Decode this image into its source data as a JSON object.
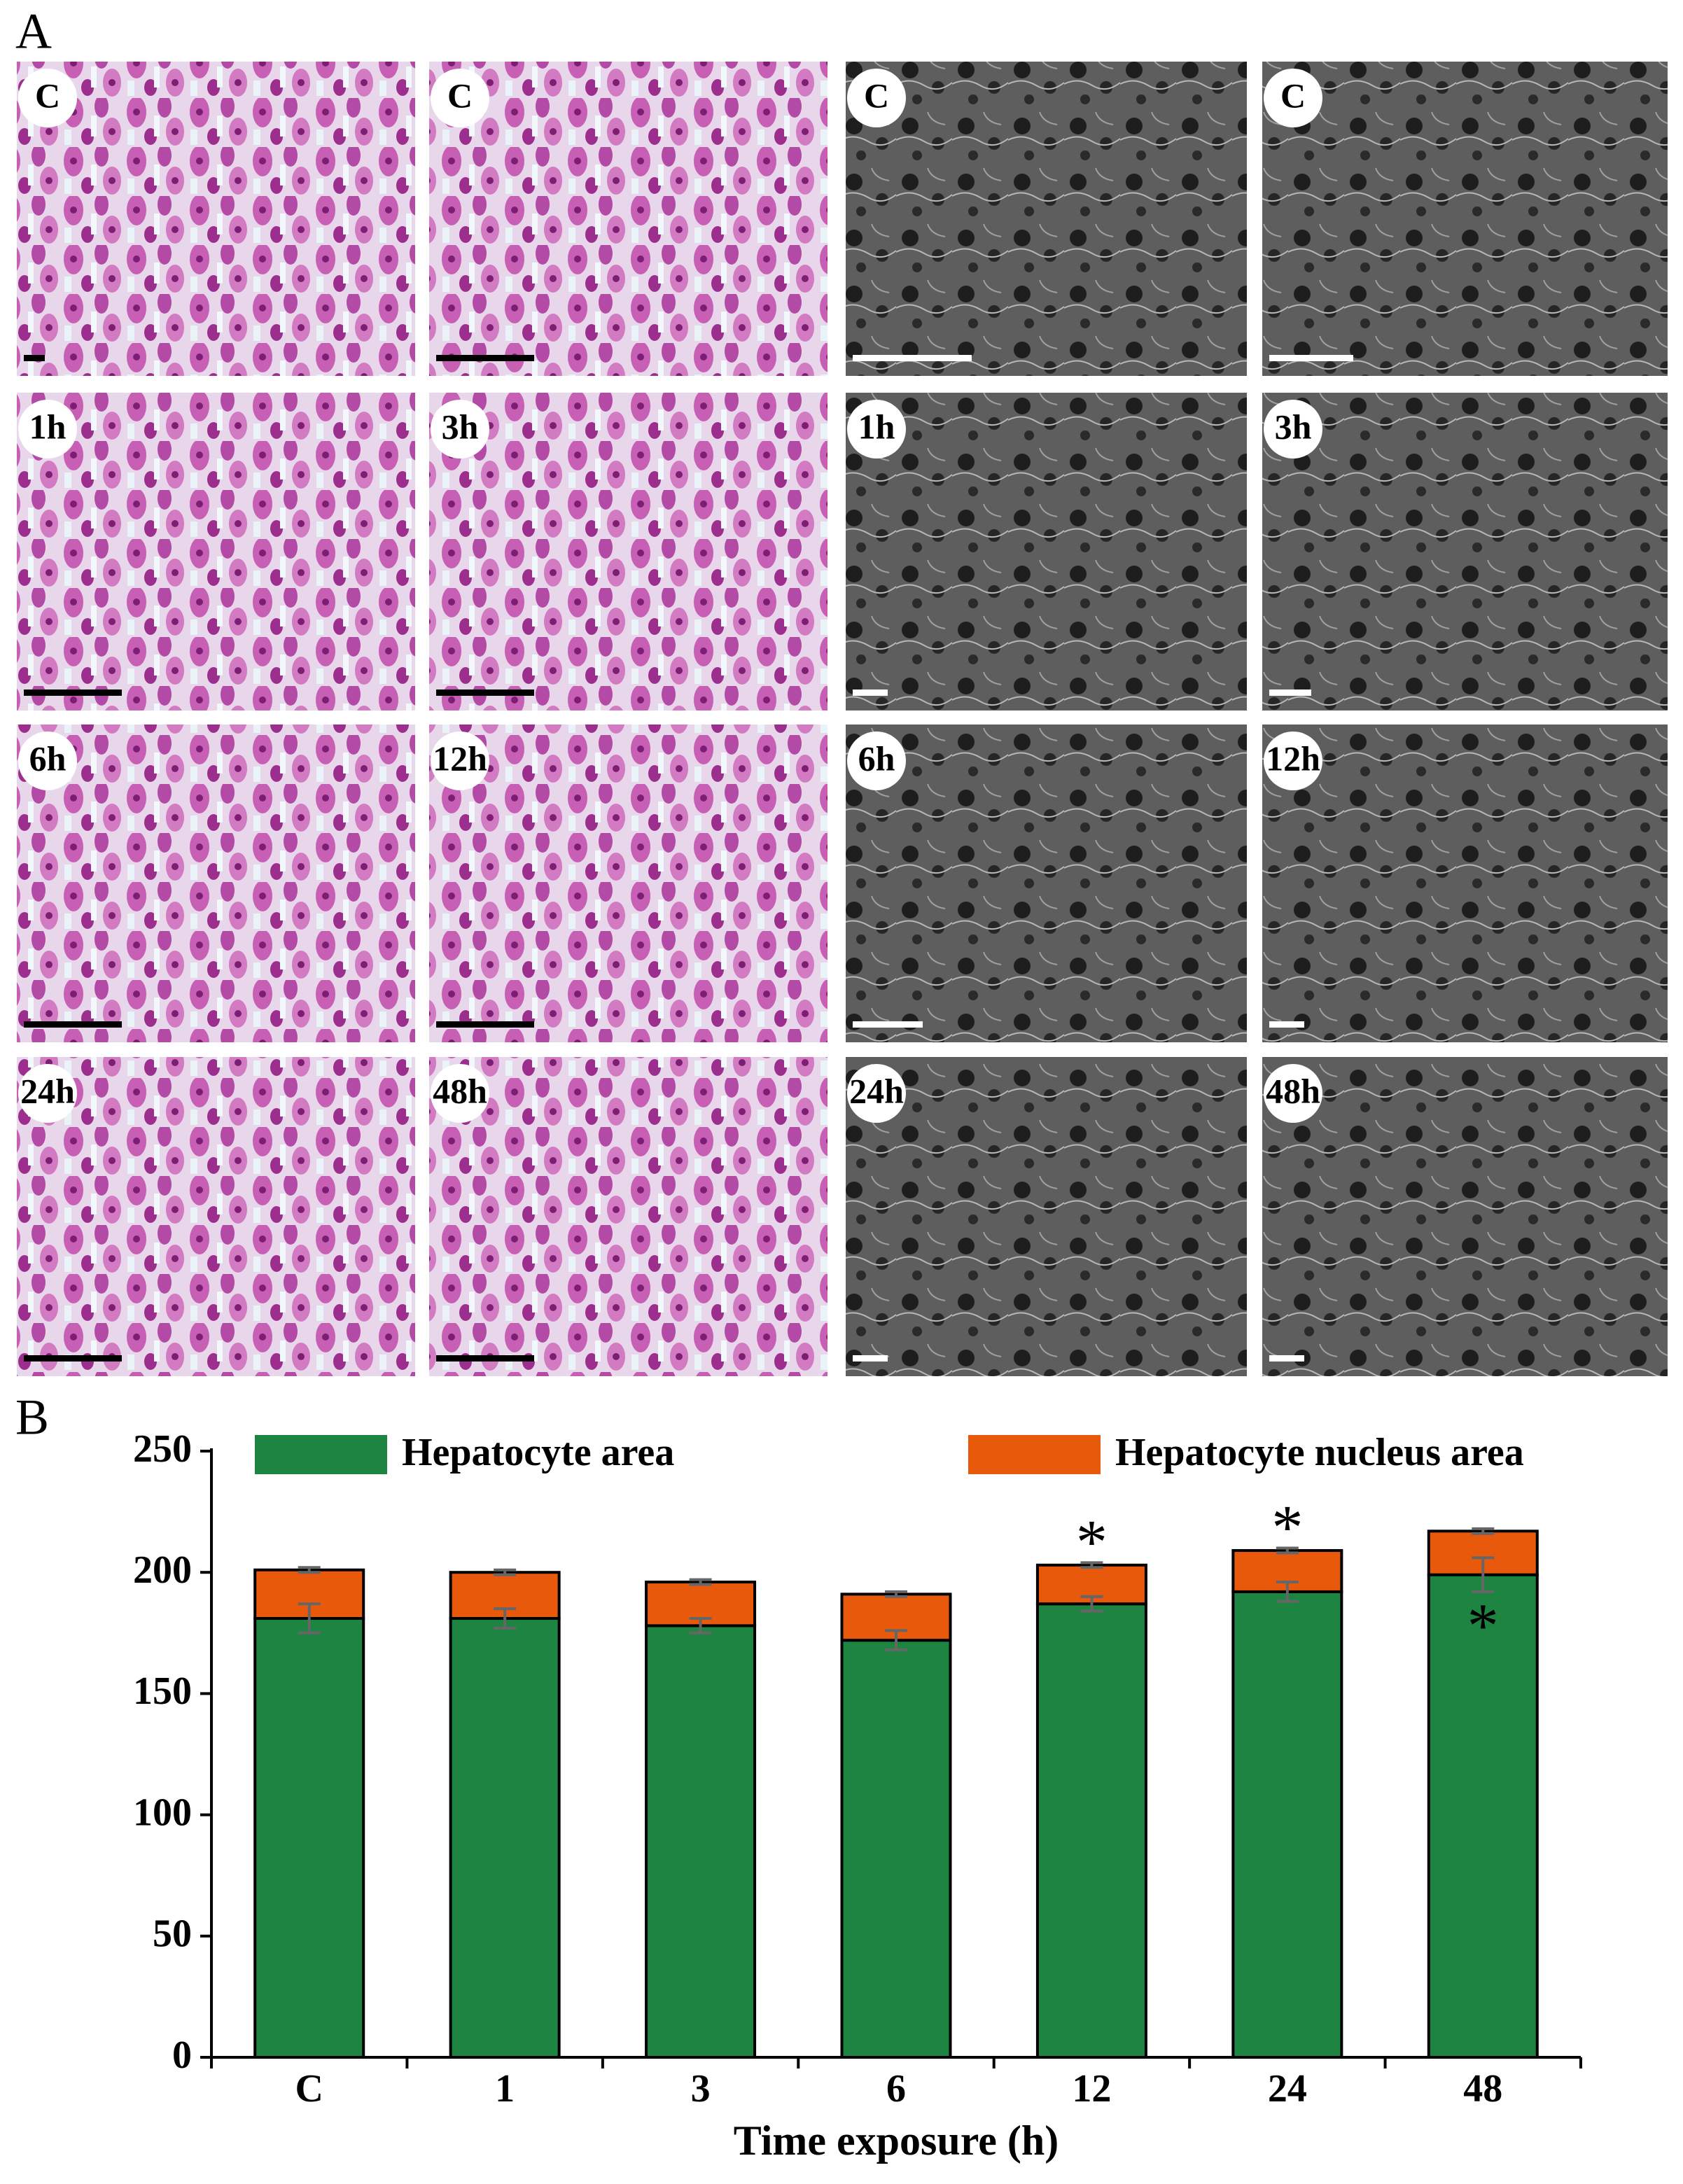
{
  "figure": {
    "panel_labels": [
      "A",
      "B"
    ],
    "micrograph_labels": [
      "C",
      "C",
      "C",
      "C",
      "1h",
      "3h",
      "1h",
      "3h",
      "6h",
      "12h",
      "6h",
      "12h",
      "24h",
      "48h",
      "24h",
      "48h"
    ]
  },
  "chart_data": {
    "type": "bar",
    "stacked": true,
    "x_label": "Time exposure (h)",
    "categories": [
      "C",
      "1",
      "3",
      "6",
      "12",
      "24",
      "48"
    ],
    "series": [
      {
        "name": "Hepatocyte area",
        "color": "#1e8442",
        "values": [
          181,
          181,
          178,
          172,
          187,
          192,
          199
        ],
        "errors": [
          6,
          4,
          3,
          4,
          3,
          4,
          7
        ],
        "markers": [
          null,
          null,
          null,
          null,
          null,
          null,
          "*"
        ]
      },
      {
        "name": "Hepatocyte nucleus area",
        "color": "#e8590c",
        "values": [
          20,
          19,
          18,
          19,
          16,
          17,
          18
        ],
        "errors": [
          1,
          1,
          1,
          1,
          1,
          1,
          1
        ],
        "markers": [
          null,
          null,
          null,
          null,
          "*",
          "*",
          null
        ]
      }
    ],
    "ylim": [
      0,
      250
    ],
    "yticks": [
      0,
      50,
      100,
      150,
      200,
      250
    ],
    "grid": false,
    "legend": "top"
  }
}
